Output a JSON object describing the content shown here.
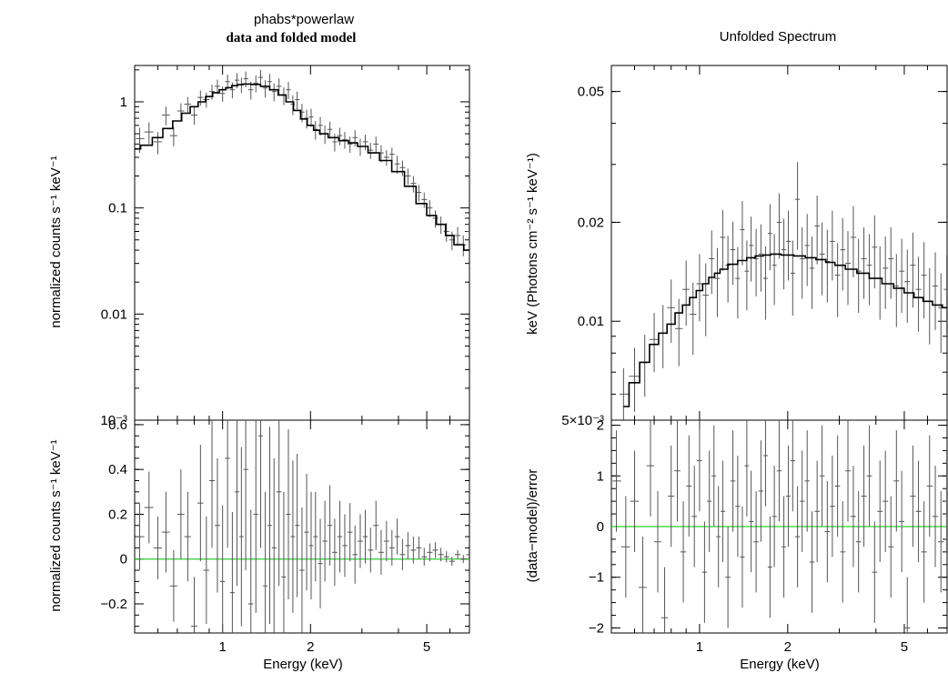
{
  "chart_data": [
    {
      "type": "scatter",
      "id": "left-top",
      "title": "phabs*powerlaw",
      "subtitle": "data and folded model",
      "xlabel": "",
      "ylabel": "normalized counts s⁻¹ keV⁻¹",
      "xscale": "log",
      "yscale": "log",
      "xlim": [
        0.5,
        7.0
      ],
      "ylim": [
        0.001,
        2.2
      ],
      "yticks": [
        {
          "v": 1,
          "label": "1"
        },
        {
          "v": 0.1,
          "label": "0.1"
        },
        {
          "v": 0.01,
          "label": "0.01"
        },
        {
          "v": 0.001,
          "label": "10⁻³"
        }
      ],
      "xticks": [
        {
          "v": 1,
          "label": ""
        },
        {
          "v": 2,
          "label": ""
        },
        {
          "v": 5,
          "label": ""
        }
      ],
      "model_color": "#000000",
      "model": {
        "x": [
          0.5,
          0.55,
          0.6,
          0.65,
          0.7,
          0.75,
          0.8,
          0.85,
          0.9,
          0.95,
          1.0,
          1.05,
          1.1,
          1.15,
          1.2,
          1.3,
          1.4,
          1.5,
          1.6,
          1.7,
          1.8,
          1.9,
          2.0,
          2.1,
          2.2,
          2.4,
          2.6,
          2.8,
          3.0,
          3.3,
          3.6,
          4.0,
          4.4,
          4.8,
          5.2,
          5.6,
          6.0,
          6.4,
          7.0
        ],
        "y": [
          0.36,
          0.39,
          0.46,
          0.56,
          0.66,
          0.78,
          0.9,
          1.0,
          1.12,
          1.22,
          1.3,
          1.36,
          1.42,
          1.45,
          1.47,
          1.46,
          1.4,
          1.3,
          1.16,
          1.0,
          0.83,
          0.69,
          0.6,
          0.54,
          0.5,
          0.46,
          0.43,
          0.41,
          0.38,
          0.33,
          0.28,
          0.22,
          0.16,
          0.11,
          0.085,
          0.07,
          0.055,
          0.045,
          0.04
        ]
      },
      "points": {
        "x": [
          0.52,
          0.56,
          0.6,
          0.64,
          0.68,
          0.72,
          0.76,
          0.8,
          0.84,
          0.88,
          0.92,
          0.96,
          1.0,
          1.04,
          1.08,
          1.12,
          1.16,
          1.2,
          1.25,
          1.3,
          1.35,
          1.4,
          1.45,
          1.5,
          1.56,
          1.62,
          1.68,
          1.74,
          1.8,
          1.87,
          1.94,
          2.01,
          2.08,
          2.16,
          2.24,
          2.33,
          2.42,
          2.52,
          2.62,
          2.73,
          2.84,
          2.96,
          3.08,
          3.21,
          3.35,
          3.49,
          3.64,
          3.8,
          3.96,
          4.13,
          4.31,
          4.5,
          4.7,
          4.9,
          5.12,
          5.35,
          5.59,
          5.84,
          6.1,
          6.38,
          6.67,
          6.98
        ],
        "y": [
          0.45,
          0.52,
          0.42,
          0.75,
          0.48,
          0.82,
          0.95,
          0.75,
          1.1,
          1.05,
          1.25,
          1.4,
          1.2,
          1.55,
          1.3,
          1.6,
          1.45,
          1.65,
          1.3,
          1.5,
          1.7,
          1.35,
          1.55,
          1.25,
          1.4,
          1.15,
          1.3,
          0.95,
          1.05,
          0.8,
          0.7,
          0.72,
          0.55,
          0.6,
          0.5,
          0.55,
          0.42,
          0.48,
          0.44,
          0.4,
          0.46,
          0.38,
          0.42,
          0.35,
          0.4,
          0.33,
          0.3,
          0.32,
          0.26,
          0.24,
          0.2,
          0.17,
          0.14,
          0.12,
          0.1,
          0.08,
          0.07,
          0.06,
          0.05,
          0.055,
          0.045,
          0.06
        ],
        "yerr": [
          0.12,
          0.12,
          0.1,
          0.15,
          0.1,
          0.15,
          0.16,
          0.14,
          0.18,
          0.17,
          0.2,
          0.22,
          0.2,
          0.25,
          0.22,
          0.26,
          0.24,
          0.28,
          0.25,
          0.27,
          0.3,
          0.25,
          0.28,
          0.24,
          0.26,
          0.22,
          0.24,
          0.2,
          0.2,
          0.16,
          0.14,
          0.14,
          0.11,
          0.12,
          0.1,
          0.1,
          0.08,
          0.09,
          0.08,
          0.07,
          0.08,
          0.07,
          0.07,
          0.06,
          0.07,
          0.06,
          0.05,
          0.05,
          0.05,
          0.04,
          0.035,
          0.03,
          0.025,
          0.02,
          0.018,
          0.015,
          0.013,
          0.012,
          0.01,
          0.011,
          0.01,
          0.014
        ]
      }
    },
    {
      "type": "scatter",
      "id": "left-bottom",
      "xlabel": "Energy (keV)",
      "ylabel": "normalized counts s⁻¹ keV⁻¹",
      "xscale": "log",
      "yscale": "linear",
      "xlim": [
        0.5,
        7.0
      ],
      "ylim": [
        -0.33,
        0.62
      ],
      "yticks": [
        {
          "v": 0.6,
          "label": "0.6"
        },
        {
          "v": 0.4,
          "label": "0.4"
        },
        {
          "v": 0.2,
          "label": "0.2"
        },
        {
          "v": 0,
          "label": "0"
        },
        {
          "v": -0.2,
          "label": "−0.2"
        }
      ],
      "xticks": [
        {
          "v": 1,
          "label": "1"
        },
        {
          "v": 2,
          "label": "2"
        },
        {
          "v": 5,
          "label": "5"
        }
      ],
      "reference_line": {
        "y": 0,
        "color": "#33cc33"
      },
      "points": {
        "x": [
          0.52,
          0.56,
          0.6,
          0.64,
          0.68,
          0.72,
          0.76,
          0.8,
          0.84,
          0.88,
          0.92,
          0.96,
          1.0,
          1.04,
          1.08,
          1.12,
          1.16,
          1.2,
          1.25,
          1.3,
          1.35,
          1.4,
          1.45,
          1.5,
          1.56,
          1.62,
          1.68,
          1.74,
          1.8,
          1.87,
          1.94,
          2.01,
          2.08,
          2.16,
          2.24,
          2.33,
          2.42,
          2.52,
          2.62,
          2.73,
          2.84,
          2.96,
          3.08,
          3.21,
          3.35,
          3.49,
          3.64,
          3.8,
          3.96,
          4.13,
          4.31,
          4.5,
          4.7,
          4.9,
          5.12,
          5.35,
          5.59,
          5.84,
          6.1,
          6.38,
          6.67,
          6.98
        ],
        "y": [
          0.1,
          0.23,
          0.05,
          0.12,
          -0.12,
          0.2,
          0.1,
          -0.3,
          0.25,
          -0.05,
          0.35,
          0.15,
          -0.1,
          0.45,
          -0.15,
          0.3,
          0.1,
          0.4,
          -0.2,
          0.2,
          0.55,
          -0.12,
          0.15,
          0.05,
          0.3,
          -0.08,
          0.2,
          0.1,
          0.15,
          -0.05,
          0.12,
          0.06,
          0.1,
          -0.02,
          0.08,
          0.15,
          0.03,
          0.1,
          0.06,
          0.12,
          0.02,
          0.08,
          0.1,
          0.04,
          0.15,
          0.03,
          0.08,
          0.05,
          0.1,
          0.02,
          0.06,
          0.04,
          0.05,
          0.01,
          0.03,
          0.04,
          0.02,
          0.01,
          -0.01,
          0.02,
          0.0,
          0.02
        ],
        "yerr": [
          0.15,
          0.16,
          0.14,
          0.18,
          0.16,
          0.2,
          0.2,
          0.22,
          0.26,
          0.24,
          0.3,
          0.3,
          0.34,
          0.4,
          0.36,
          0.42,
          0.4,
          0.45,
          0.42,
          0.44,
          0.5,
          0.42,
          0.44,
          0.4,
          0.42,
          0.38,
          0.38,
          0.34,
          0.32,
          0.28,
          0.26,
          0.24,
          0.2,
          0.2,
          0.18,
          0.18,
          0.15,
          0.16,
          0.14,
          0.13,
          0.13,
          0.12,
          0.12,
          0.1,
          0.11,
          0.1,
          0.09,
          0.08,
          0.08,
          0.07,
          0.06,
          0.06,
          0.05,
          0.04,
          0.04,
          0.035,
          0.03,
          0.025,
          0.02,
          0.02,
          0.018,
          0.02
        ]
      }
    },
    {
      "type": "scatter",
      "id": "right-top",
      "title": "Unfolded Spectrum",
      "xlabel": "",
      "ylabel": "keV (Photons cm⁻² s⁻¹ keV⁻¹)",
      "xscale": "log",
      "yscale": "log",
      "xlim": [
        0.5,
        7.0
      ],
      "ylim": [
        0.005,
        0.06
      ],
      "yticks": [
        {
          "v": 0.05,
          "label": "0.05"
        },
        {
          "v": 0.02,
          "label": "0.02"
        },
        {
          "v": 0.01,
          "label": "0.01"
        },
        {
          "v": 0.005,
          "label": "5×10⁻³"
        }
      ],
      "xticks": [
        {
          "v": 1,
          "label": ""
        },
        {
          "v": 2,
          "label": ""
        },
        {
          "v": 5,
          "label": ""
        }
      ],
      "model_color": "#000000",
      "model": {
        "x": [
          0.55,
          0.6,
          0.65,
          0.7,
          0.75,
          0.8,
          0.85,
          0.9,
          0.95,
          1.0,
          1.05,
          1.1,
          1.15,
          1.2,
          1.3,
          1.4,
          1.5,
          1.6,
          1.7,
          1.8,
          2.0,
          2.2,
          2.4,
          2.6,
          2.8,
          3.0,
          3.3,
          3.6,
          4.0,
          4.4,
          4.8,
          5.2,
          5.6,
          6.0,
          6.5,
          7.0
        ],
        "y": [
          0.0055,
          0.0065,
          0.0075,
          0.0085,
          0.0092,
          0.0098,
          0.0106,
          0.0112,
          0.0118,
          0.0124,
          0.013,
          0.0136,
          0.014,
          0.0144,
          0.0149,
          0.0153,
          0.0156,
          0.0158,
          0.0159,
          0.016,
          0.0159,
          0.0158,
          0.0156,
          0.0154,
          0.0151,
          0.0148,
          0.0144,
          0.014,
          0.0135,
          0.013,
          0.0126,
          0.0122,
          0.0118,
          0.0115,
          0.0112,
          0.011
        ]
      },
      "points": {
        "x": [
          0.55,
          0.6,
          0.65,
          0.7,
          0.75,
          0.8,
          0.85,
          0.9,
          0.95,
          1.0,
          1.05,
          1.1,
          1.15,
          1.2,
          1.25,
          1.3,
          1.35,
          1.4,
          1.45,
          1.5,
          1.56,
          1.62,
          1.68,
          1.74,
          1.8,
          1.87,
          1.94,
          2.01,
          2.08,
          2.16,
          2.24,
          2.33,
          2.42,
          2.52,
          2.62,
          2.73,
          2.84,
          2.96,
          3.08,
          3.21,
          3.35,
          3.49,
          3.64,
          3.8,
          3.96,
          4.13,
          4.31,
          4.5,
          4.7,
          4.9,
          5.12,
          5.35,
          5.59,
          5.84,
          6.1,
          6.38,
          6.67,
          6.98
        ],
        "y": [
          0.006,
          0.0068,
          0.0075,
          0.0088,
          0.0092,
          0.011,
          0.0095,
          0.0125,
          0.0105,
          0.013,
          0.012,
          0.0155,
          0.0135,
          0.018,
          0.0148,
          0.0165,
          0.0135,
          0.019,
          0.0142,
          0.017,
          0.0155,
          0.016,
          0.0135,
          0.0185,
          0.0148,
          0.02,
          0.0165,
          0.0175,
          0.014,
          0.0235,
          0.0155,
          0.017,
          0.0145,
          0.0195,
          0.016,
          0.0152,
          0.0175,
          0.0138,
          0.0165,
          0.015,
          0.018,
          0.0142,
          0.0155,
          0.0148,
          0.0168,
          0.0135,
          0.0145,
          0.0155,
          0.0128,
          0.0142,
          0.0132,
          0.0148,
          0.0125,
          0.0138,
          0.0115,
          0.0128,
          0.011,
          0.0125
        ],
        "yerr": [
          0.0012,
          0.0015,
          0.0016,
          0.0018,
          0.002,
          0.0024,
          0.0022,
          0.0028,
          0.0026,
          0.003,
          0.003,
          0.0034,
          0.0032,
          0.0038,
          0.0034,
          0.0036,
          0.0033,
          0.0042,
          0.0034,
          0.0038,
          0.0036,
          0.0037,
          0.0034,
          0.0042,
          0.0036,
          0.0045,
          0.004,
          0.0042,
          0.0036,
          0.007,
          0.0038,
          0.0042,
          0.0036,
          0.0046,
          0.004,
          0.0038,
          0.0042,
          0.0035,
          0.0041,
          0.0038,
          0.0044,
          0.0036,
          0.0038,
          0.0036,
          0.0042,
          0.0034,
          0.0036,
          0.0038,
          0.0032,
          0.0036,
          0.0033,
          0.0038,
          0.0032,
          0.0036,
          0.003,
          0.0034,
          0.003,
          0.0034
        ]
      }
    },
    {
      "type": "scatter",
      "id": "right-bottom",
      "xlabel": "Energy (keV)",
      "ylabel": "(data−model)/error",
      "xscale": "log",
      "yscale": "linear",
      "xlim": [
        0.5,
        7.0
      ],
      "ylim": [
        -2.1,
        2.1
      ],
      "yticks": [
        {
          "v": 2,
          "label": "2"
        },
        {
          "v": 1,
          "label": "1"
        },
        {
          "v": 0,
          "label": "0"
        },
        {
          "v": -1,
          "label": "−1"
        },
        {
          "v": -2,
          "label": "−2"
        }
      ],
      "xticks": [
        {
          "v": 1,
          "label": "1"
        },
        {
          "v": 2,
          "label": "2"
        },
        {
          "v": 5,
          "label": "5"
        }
      ],
      "reference_line": {
        "y": 0,
        "color": "#33cc33"
      },
      "points": {
        "x": [
          0.52,
          0.56,
          0.6,
          0.64,
          0.68,
          0.72,
          0.76,
          0.8,
          0.84,
          0.88,
          0.92,
          0.96,
          1.0,
          1.04,
          1.08,
          1.12,
          1.16,
          1.2,
          1.25,
          1.3,
          1.35,
          1.4,
          1.45,
          1.5,
          1.56,
          1.62,
          1.68,
          1.74,
          1.8,
          1.87,
          1.94,
          2.01,
          2.08,
          2.16,
          2.24,
          2.33,
          2.42,
          2.52,
          2.62,
          2.73,
          2.84,
          2.96,
          3.08,
          3.21,
          3.35,
          3.49,
          3.64,
          3.8,
          3.96,
          4.13,
          4.31,
          4.5,
          4.7,
          4.9,
          5.12,
          5.35,
          5.59,
          5.84,
          6.1,
          6.38,
          6.67,
          6.98
        ],
        "y": [
          0.9,
          -0.4,
          0.5,
          -1.2,
          1.2,
          -0.3,
          -1.8,
          0.6,
          1.1,
          -0.5,
          0.8,
          0.2,
          1.3,
          -0.9,
          0.5,
          1.0,
          -0.2,
          0.3,
          -1.0,
          0.9,
          0.4,
          -0.6,
          1.2,
          0.1,
          -0.3,
          0.7,
          1.4,
          -0.8,
          0.2,
          1.1,
          -0.4,
          0.6,
          1.3,
          -0.2,
          0.5,
          0.9,
          -0.7,
          0.3,
          1.0,
          -0.1,
          0.4,
          0.8,
          -0.5,
          1.1,
          0.2,
          -0.3,
          0.6,
          1.0,
          -0.9,
          0.3,
          0.5,
          -0.4,
          0.9,
          0.1,
          -2.0,
          0.6,
          0.3,
          -0.5,
          0.8,
          0.2,
          -0.3,
          0.5
        ],
        "yerr": [
          1,
          1,
          1,
          1,
          1,
          1,
          1,
          1,
          1,
          1,
          1,
          1,
          1,
          1,
          1,
          1,
          1,
          1,
          1,
          1,
          1,
          1,
          1,
          1,
          1,
          1,
          1,
          1,
          1,
          1,
          1,
          1,
          1,
          1,
          1,
          1,
          1,
          1,
          1,
          1,
          1,
          1,
          1,
          1,
          1,
          1,
          1,
          1,
          1,
          1,
          1,
          1,
          1,
          1,
          1,
          1,
          1,
          1,
          1,
          1,
          1,
          1
        ]
      }
    }
  ]
}
